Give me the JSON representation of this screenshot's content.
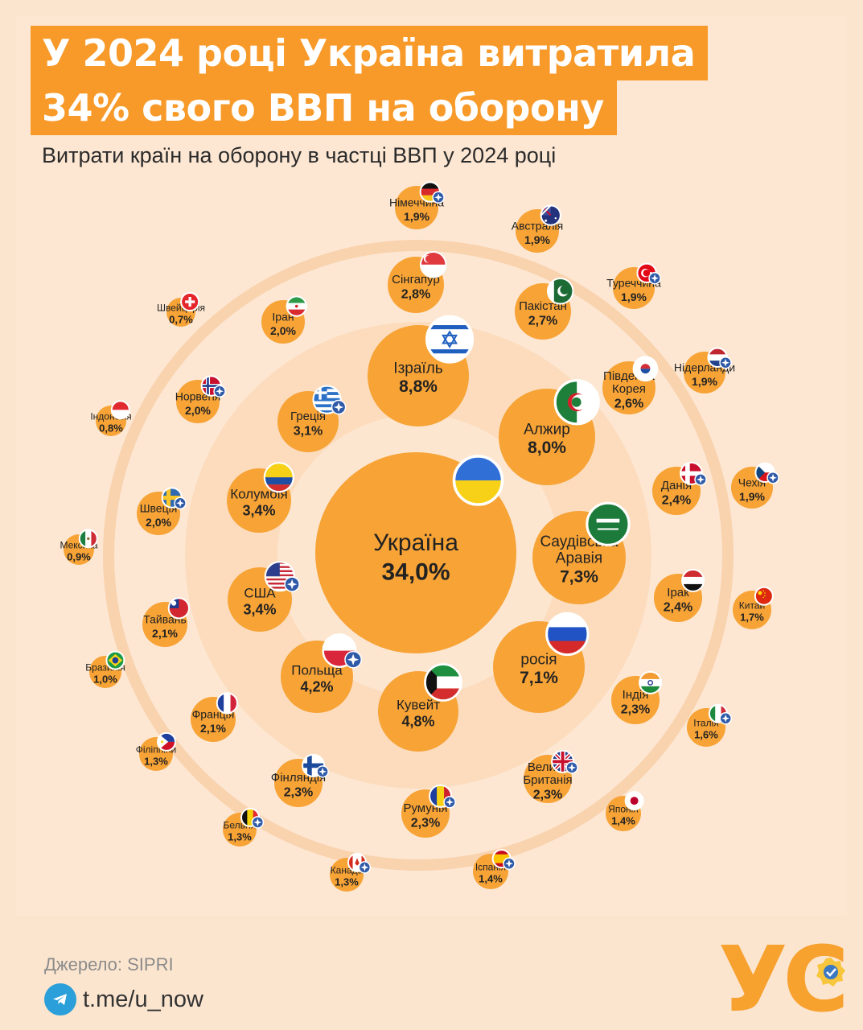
{
  "title": {
    "line1": "У 2024 році Україна витратила",
    "line2": "34% свого ВВП на оборону"
  },
  "subtitle": "Витрати країн на оборону в частці ВВП у 2024 році",
  "footer": {
    "source": "Джерело: SIPRI",
    "telegram": "t.me/u_now",
    "logo_text": "УС"
  },
  "colors": {
    "accent": "#f89a2a",
    "bubble": "#f7a336",
    "ring_outer": "#fbd9b8",
    "ring_middle": "#fccfa6",
    "ring_inner": "#fde1c4",
    "nato_badge": "#2f5aa8",
    "text_dark": "#222222"
  },
  "chart_data": {
    "type": "bubble",
    "title": "Витрати країн на оборону в частці ВВП у 2024 році",
    "unit": "% ВВП",
    "nato_marker": "nato-badge-icon",
    "countries": [
      {
        "name": "Україна",
        "label": "34,0%",
        "value": 34.0,
        "flag": "ua",
        "nato": false
      },
      {
        "name": "Ізраїль",
        "label": "8,8%",
        "value": 8.8,
        "flag": "il",
        "nato": false
      },
      {
        "name": "Алжир",
        "label": "8,0%",
        "value": 8.0,
        "flag": "dz",
        "nato": false
      },
      {
        "name": "Саудівська Аравія",
        "label": "7,3%",
        "value": 7.3,
        "flag": "sa",
        "nato": false
      },
      {
        "name": "росія",
        "label": "7,1%",
        "value": 7.1,
        "flag": "ru",
        "nato": false
      },
      {
        "name": "Кувейт",
        "label": "4,8%",
        "value": 4.8,
        "flag": "kw",
        "nato": false
      },
      {
        "name": "Польща",
        "label": "4,2%",
        "value": 4.2,
        "flag": "pl",
        "nato": true
      },
      {
        "name": "США",
        "label": "3,4%",
        "value": 3.4,
        "flag": "us",
        "nato": true
      },
      {
        "name": "Колумбія",
        "label": "3,4%",
        "value": 3.4,
        "flag": "co",
        "nato": false
      },
      {
        "name": "Греція",
        "label": "3,1%",
        "value": 3.1,
        "flag": "gr",
        "nato": true
      },
      {
        "name": "Сінгапур",
        "label": "2,8%",
        "value": 2.8,
        "flag": "sg",
        "nato": false
      },
      {
        "name": "Пакістан",
        "label": "2,7%",
        "value": 2.7,
        "flag": "pk",
        "nato": false
      },
      {
        "name": "Південна Корея",
        "label": "2,6%",
        "value": 2.6,
        "flag": "kr",
        "nato": false
      },
      {
        "name": "Данія",
        "label": "2,4%",
        "value": 2.4,
        "flag": "dk",
        "nato": true
      },
      {
        "name": "Ірак",
        "label": "2,4%",
        "value": 2.4,
        "flag": "iq",
        "nato": false
      },
      {
        "name": "Індія",
        "label": "2,3%",
        "value": 2.3,
        "flag": "in",
        "nato": false
      },
      {
        "name": "Велика Британія",
        "label": "2,3%",
        "value": 2.3,
        "flag": "gb",
        "nato": true
      },
      {
        "name": "Румунія",
        "label": "2,3%",
        "value": 2.3,
        "flag": "ro",
        "nato": true
      },
      {
        "name": "Фінляндія",
        "label": "2,3%",
        "value": 2.3,
        "flag": "fi",
        "nato": true
      },
      {
        "name": "Франція",
        "label": "2,1%",
        "value": 2.1,
        "flag": "fr",
        "nato": false
      },
      {
        "name": "Тайвань",
        "label": "2,1%",
        "value": 2.1,
        "flag": "tw",
        "nato": false
      },
      {
        "name": "Швеція",
        "label": "2,0%",
        "value": 2.0,
        "flag": "se",
        "nato": true
      },
      {
        "name": "Норвегія",
        "label": "2,0%",
        "value": 2.0,
        "flag": "no",
        "nato": true
      },
      {
        "name": "Іран",
        "label": "2,0%",
        "value": 2.0,
        "flag": "ir",
        "nato": false
      },
      {
        "name": "Німеччина",
        "label": "1,9%",
        "value": 1.9,
        "flag": "de",
        "nato": true
      },
      {
        "name": "Австралія",
        "label": "1,9%",
        "value": 1.9,
        "flag": "au",
        "nato": false
      },
      {
        "name": "Туреччина",
        "label": "1,9%",
        "value": 1.9,
        "flag": "tr",
        "nato": true
      },
      {
        "name": "Нідерланди",
        "label": "1,9%",
        "value": 1.9,
        "flag": "nl",
        "nato": true
      },
      {
        "name": "Чехія",
        "label": "1,9%",
        "value": 1.9,
        "flag": "cz",
        "nato": true
      },
      {
        "name": "Китай",
        "label": "1,7%",
        "value": 1.7,
        "flag": "cn",
        "nato": false
      },
      {
        "name": "Італія",
        "label": "1,6%",
        "value": 1.6,
        "flag": "it",
        "nato": true
      },
      {
        "name": "Японія",
        "label": "1,4%",
        "value": 1.4,
        "flag": "jp",
        "nato": false
      },
      {
        "name": "Іспанія",
        "label": "1,4%",
        "value": 1.4,
        "flag": "es",
        "nato": true
      },
      {
        "name": "Канада",
        "label": "1,3%",
        "value": 1.3,
        "flag": "ca",
        "nato": true
      },
      {
        "name": "Бельгія",
        "label": "1,3%",
        "value": 1.3,
        "flag": "be",
        "nato": true
      },
      {
        "name": "Філіппіни",
        "label": "1,3%",
        "value": 1.3,
        "flag": "ph",
        "nato": false
      },
      {
        "name": "Бразилія",
        "label": "1,0%",
        "value": 1.0,
        "flag": "br",
        "nato": false
      },
      {
        "name": "Мексика",
        "label": "0,9%",
        "value": 0.9,
        "flag": "mx",
        "nato": false
      },
      {
        "name": "Індонезія",
        "label": "0,8%",
        "value": 0.8,
        "flag": "id",
        "nato": false
      },
      {
        "name": "Швейцарія",
        "label": "0,7%",
        "value": 0.7,
        "flag": "ch",
        "nato": false
      }
    ]
  }
}
